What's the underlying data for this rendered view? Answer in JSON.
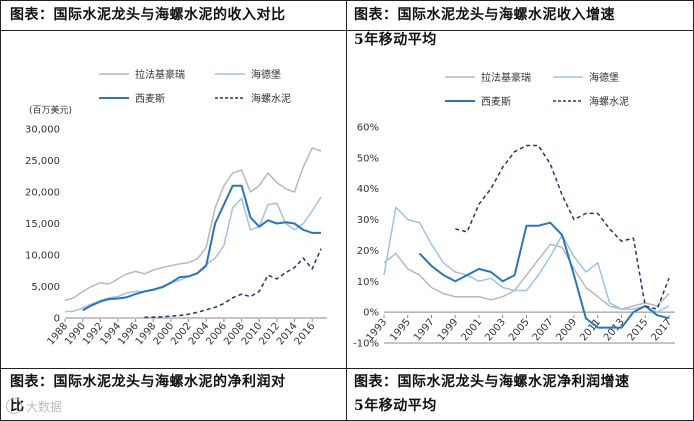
{
  "captions": {
    "top_left": "图表：国际水泥龙头与海螺水泥的收入对比",
    "top_right_line1": "图表：国际水泥龙头与海螺水泥收入增速",
    "top_right_line2": "5年移动平均",
    "bottom_left_line1": "图表：国际水泥龙头与海螺水泥的净利润对",
    "bottom_left_line2": "比",
    "bottom_right_line1": "图表：国际水泥龙头与海螺水泥净利润增速",
    "bottom_right_line2": "5年移动平均"
  },
  "watermark": "大数据",
  "colors": {
    "lafarge": "#b8b8b8",
    "heidelberg": "#9fc3e6",
    "cemex": "#2e75b6",
    "conch": "#1f3a64"
  },
  "chart_data": [
    {
      "type": "line",
      "ylabel": "(百万美元)",
      "ylim": [
        0,
        30000
      ],
      "yticks": [
        "0",
        "5,000",
        "10,000",
        "15,000",
        "20,000",
        "25,000",
        "30,000"
      ],
      "ytick_values": [
        0,
        5000,
        10000,
        15000,
        20000,
        25000,
        30000
      ],
      "xlim": [
        1988,
        2017
      ],
      "xticks": [
        "1988",
        "1990",
        "1992",
        "1994",
        "1996",
        "1998",
        "2000",
        "2002",
        "2004",
        "2006",
        "2008",
        "2010",
        "2012",
        "2014",
        "2016"
      ],
      "legend": [
        "拉法基豪瑞",
        "海德堡",
        "西麦斯",
        "海螺水泥"
      ],
      "series": [
        {
          "name": "拉法基豪瑞",
          "key": "lafarge",
          "dash": false,
          "x": [
            1988,
            1989,
            1990,
            1991,
            1992,
            1993,
            1994,
            1995,
            1996,
            1997,
            1998,
            1999,
            2000,
            2001,
            2002,
            2003,
            2004,
            2005,
            2006,
            2007,
            2008,
            2009,
            2010,
            2011,
            2012,
            2013,
            2014,
            2015,
            2016,
            2017
          ],
          "y": [
            2800,
            3200,
            4200,
            5000,
            5600,
            5400,
            6200,
            7000,
            7400,
            7000,
            7600,
            8000,
            8300,
            8600,
            8800,
            9400,
            11200,
            17500,
            21000,
            23000,
            23500,
            20000,
            21000,
            23000,
            21500,
            20500,
            20000,
            24000,
            27000,
            26500
          ]
        },
        {
          "name": "海德堡",
          "key": "heidelberg",
          "dash": false,
          "x": [
            1988,
            1989,
            1990,
            1991,
            1992,
            1993,
            1994,
            1995,
            1996,
            1997,
            1998,
            1999,
            2000,
            2001,
            2002,
            2003,
            2004,
            2005,
            2006,
            2007,
            2008,
            2009,
            2010,
            2011,
            2012,
            2013,
            2014,
            2015,
            2016,
            2017
          ],
          "y": [
            1000,
            1100,
            1600,
            2200,
            2800,
            3200,
            3400,
            4000,
            4200,
            4200,
            4400,
            4800,
            5600,
            6000,
            6600,
            7200,
            8500,
            9500,
            11500,
            17500,
            19000,
            14000,
            14500,
            18000,
            18200,
            15000,
            14000,
            15000,
            17000,
            19200
          ]
        },
        {
          "name": "西麦斯",
          "key": "cemex",
          "dash": false,
          "x": [
            1990,
            1991,
            1992,
            1993,
            1994,
            1995,
            1996,
            1997,
            1998,
            1999,
            2000,
            2001,
            2002,
            2003,
            2004,
            2005,
            2006,
            2007,
            2008,
            2009,
            2010,
            2011,
            2012,
            2013,
            2014,
            2015,
            2016,
            2017
          ],
          "y": [
            1200,
            2000,
            2600,
            3000,
            3100,
            3300,
            3800,
            4200,
            4500,
            4900,
            5600,
            6500,
            6600,
            7100,
            8300,
            15000,
            18000,
            21000,
            21000,
            16000,
            14500,
            15500,
            15000,
            15200,
            15000,
            14000,
            13500,
            13500
          ]
        },
        {
          "name": "海螺水泥",
          "key": "conch",
          "dash": true,
          "x": [
            1997,
            1998,
            1999,
            2000,
            2001,
            2002,
            2003,
            2004,
            2005,
            2006,
            2007,
            2008,
            2009,
            2010,
            2011,
            2012,
            2013,
            2014,
            2015,
            2016,
            2017
          ],
          "y": [
            100,
            150,
            200,
            300,
            400,
            600,
            900,
            1300,
            1700,
            2300,
            3200,
            3800,
            3400,
            4200,
            6800,
            6200,
            7200,
            8000,
            9500,
            7800,
            11000
          ]
        }
      ]
    },
    {
      "type": "line",
      "ylim": [
        -0.1,
        0.6
      ],
      "yticks": [
        "-10%",
        "0%",
        "10%",
        "20%",
        "30%",
        "40%",
        "50%",
        "60%"
      ],
      "ytick_values": [
        -0.1,
        0,
        0.1,
        0.2,
        0.3,
        0.4,
        0.5,
        0.6
      ],
      "xlim": [
        1993,
        2017
      ],
      "xticks": [
        "1993",
        "1995",
        "1997",
        "1999",
        "2001",
        "2003",
        "2005",
        "2007",
        "2009",
        "2011",
        "2013",
        "2015",
        "2017"
      ],
      "legend": [
        "拉法基豪瑞",
        "海德堡",
        "西麦斯",
        "海螺水泥"
      ],
      "series": [
        {
          "name": "拉法基豪瑞",
          "key": "lafarge",
          "dash": false,
          "x": [
            1993,
            1994,
            1995,
            1996,
            1997,
            1998,
            1999,
            2000,
            2001,
            2002,
            2003,
            2004,
            2005,
            2006,
            2007,
            2008,
            2009,
            2010,
            2011,
            2012,
            2013,
            2014,
            2015,
            2016,
            2017
          ],
          "y": [
            0.16,
            0.19,
            0.14,
            0.12,
            0.08,
            0.06,
            0.05,
            0.05,
            0.05,
            0.04,
            0.05,
            0.07,
            0.12,
            0.17,
            0.22,
            0.21,
            0.14,
            0.08,
            0.05,
            0.02,
            0.01,
            0.02,
            0.03,
            0.02,
            0.06
          ]
        },
        {
          "name": "海德堡",
          "key": "heidelberg",
          "dash": false,
          "x": [
            1993,
            1994,
            1995,
            1996,
            1997,
            1998,
            1999,
            2000,
            2001,
            2002,
            2003,
            2004,
            2005,
            2006,
            2007,
            2008,
            2009,
            2010,
            2011,
            2012,
            2013,
            2014,
            2015,
            2016,
            2017
          ],
          "y": [
            0.12,
            0.34,
            0.3,
            0.29,
            0.22,
            0.16,
            0.13,
            0.12,
            0.1,
            0.11,
            0.08,
            0.07,
            0.07,
            0.12,
            0.18,
            0.25,
            0.18,
            0.13,
            0.16,
            0.03,
            0.01,
            0.01,
            0.02,
            0.0,
            0.02
          ]
        },
        {
          "name": "西麦斯",
          "key": "cemex",
          "dash": false,
          "x": [
            1996,
            1997,
            1998,
            1999,
            2000,
            2001,
            2002,
            2003,
            2004,
            2005,
            2006,
            2007,
            2008,
            2009,
            2010,
            2011,
            2012,
            2013,
            2014,
            2015,
            2016,
            2017
          ],
          "y": [
            0.19,
            0.15,
            0.12,
            0.1,
            0.12,
            0.14,
            0.13,
            0.1,
            0.12,
            0.28,
            0.28,
            0.29,
            0.25,
            0.12,
            -0.02,
            -0.05,
            -0.05,
            -0.05,
            0.0,
            0.02,
            -0.01,
            -0.02
          ]
        },
        {
          "name": "海螺水泥",
          "key": "conch",
          "dash": true,
          "x": [
            1999,
            2000,
            2001,
            2002,
            2003,
            2004,
            2005,
            2006,
            2007,
            2008,
            2009,
            2010,
            2011,
            2012,
            2013,
            2014,
            2015,
            2016,
            2017
          ],
          "y": [
            0.27,
            0.26,
            0.35,
            0.4,
            0.47,
            0.52,
            0.54,
            0.54,
            0.48,
            0.38,
            0.3,
            0.32,
            0.32,
            0.27,
            0.23,
            0.24,
            0.02,
            0.01,
            0.11
          ]
        }
      ]
    }
  ]
}
